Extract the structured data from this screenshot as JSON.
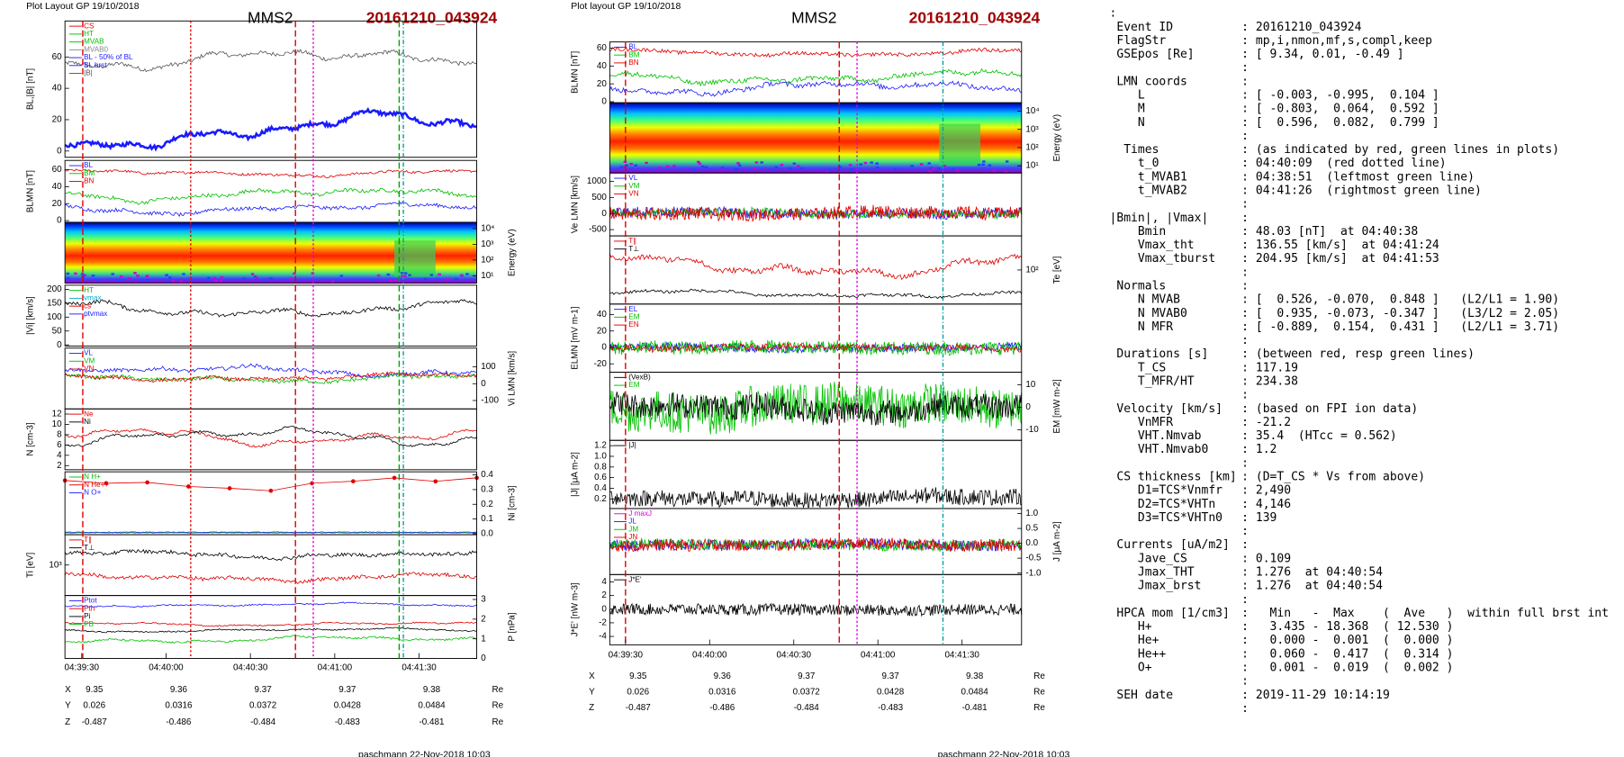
{
  "figures": [
    {
      "header": "Plot Layout GP 19/10/2018",
      "spacecraft": "MMS2",
      "event": "20161210_043924",
      "panels": [
        {
          "ylabel": "BL,|B| [nT]",
          "ylim": [
            -4,
            83
          ],
          "yticks": [
            0,
            20,
            40,
            60
          ],
          "legend": [
            {
              "name": "CS",
              "color": "#e00000"
            },
            {
              "name": "HT",
              "color": "#00c000"
            },
            {
              "name": "MVAB",
              "color": "#00c000"
            },
            {
              "name": "MVAB0",
              "color": "#888888"
            },
            {
              "name": "BL - 50% of BL",
              "color": "#2020ff"
            },
            {
              "name": "BL brst",
              "color": "#2020ff"
            },
            {
              "name": "|B|",
              "color": "#555555"
            }
          ]
        },
        {
          "ylabel": "BLMN [nT]",
          "ylim": [
            -2,
            71
          ],
          "yticks": [
            0,
            20,
            40,
            60
          ],
          "legend": [
            {
              "name": "BL",
              "color": "#2020ff"
            },
            {
              "name": "BM",
              "color": "#00c000"
            },
            {
              "name": "BN",
              "color": "#e00000"
            }
          ]
        },
        {
          "type": "spectrogram",
          "y2label": "Energy (eV)",
          "log": true,
          "y2lim": [
            3.4,
            25000
          ],
          "y2ticks": [
            {
              "value": 10,
              "label": "10¹"
            },
            {
              "value": 100,
              "label": "10²"
            },
            {
              "value": 1000,
              "label": "10³"
            },
            {
              "value": 10000,
              "label": "10⁴"
            }
          ]
        },
        {
          "ylabel": "|Vi| [km/s]",
          "ylim": [
            -4,
            215
          ],
          "yticks": [
            0,
            50,
            100,
            150,
            200
          ],
          "legend": [
            {
              "name": "HT",
              "color": "#00c000"
            },
            {
              "name": "vmax",
              "color": "#00b0d0"
            },
            {
              "name": "cs",
              "color": "#e00000"
            },
            {
              "name": "ptvmax",
              "color": "#2020ff"
            }
          ]
        },
        {
          "y2label": "Vi LMN [km/s]",
          "y2lim": [
            -150,
            212
          ],
          "y2ticks": [
            -100,
            0,
            100
          ],
          "legend": [
            {
              "name": "VL",
              "color": "#2020ff"
            },
            {
              "name": "VM",
              "color": "#00c000"
            },
            {
              "name": "VN",
              "color": "#e00000"
            }
          ]
        },
        {
          "ylabel": "N [cm-3]",
          "ylim": [
            1.2,
            13
          ],
          "yticks": [
            2,
            4,
            6,
            8,
            10,
            12
          ],
          "legend": [
            {
              "name": "Ne",
              "color": "#e00000"
            },
            {
              "name": "Ni",
              "color": "#000000"
            }
          ]
        },
        {
          "y2label": "Ni [cm-3]",
          "y2lim": [
            -0.007,
            0.421
          ],
          "y2ticks": [
            {
              "value": 0,
              "label": "0.0"
            },
            0.1,
            0.2,
            0.3,
            0.4
          ],
          "legend": [
            {
              "name": "N H+",
              "color": "#00c000"
            },
            {
              "name": "N He++",
              "color": "#e00000"
            },
            {
              "name": "N O+",
              "color": "#2020ff"
            }
          ]
        },
        {
          "ylabel": "Ti [eV]",
          "log": true,
          "ylim": [
            300,
            3300
          ],
          "yticks": [
            {
              "value": 1000,
              "label": "10³"
            }
          ],
          "legend": [
            {
              "name": "T∥",
              "color": "#e00000"
            },
            {
              "name": "T⊥",
              "color": "#000000"
            }
          ]
        },
        {
          "y2label": "P [nPa]",
          "y2lim": [
            0,
            3.2
          ],
          "y2ticks": [
            0,
            1,
            2,
            3
          ],
          "legend": [
            {
              "name": "Ptot",
              "color": "#2020ff"
            },
            {
              "name": "Pth",
              "color": "#e00000"
            },
            {
              "name": "Pi",
              "color": "#000000"
            },
            {
              "name": "PB",
              "color": "#00c000"
            }
          ]
        }
      ],
      "time_ticks": [
        "04:39:30",
        "04:40:00",
        "04:40:30",
        "04:41:00",
        "04:41:30"
      ],
      "coords": [
        {
          "label": "X",
          "values": [
            9.35,
            9.36,
            9.37,
            9.37,
            9.38
          ],
          "unit": "Re"
        },
        {
          "label": "Y",
          "values": [
            0.026,
            0.0316,
            0.0372,
            0.0428,
            0.0484
          ],
          "unit": "Re"
        },
        {
          "label": "Z",
          "values": [
            -0.487,
            -0.486,
            -0.484,
            -0.483,
            -0.481
          ],
          "unit": "Re"
        }
      ],
      "footer": "paschmann 22-Nov-2018 10:03"
    },
    {
      "header": "Plot layout GP 19/10/2018",
      "spacecraft": "MMS2",
      "event": "20161210_043924",
      "panels": [
        {
          "ylabel": "BLMN [nT]",
          "ylim": [
            -1.2,
            67
          ],
          "yticks": [
            0,
            20,
            40,
            60
          ],
          "legend": [
            {
              "name": "BL",
              "color": "#2020ff"
            },
            {
              "name": "BM",
              "color": "#00c000"
            },
            {
              "name": "BN",
              "color": "#e00000"
            }
          ]
        },
        {
          "type": "spectrogram",
          "y2label": "Energy (eV)",
          "log": true,
          "y2lim": [
            4,
            29000
          ],
          "y2ticks": [
            {
              "value": 10,
              "label": "10¹"
            },
            {
              "value": 100,
              "label": "10²"
            },
            {
              "value": 1000,
              "label": "10³"
            },
            {
              "value": 10000,
              "label": "10⁴"
            }
          ]
        },
        {
          "ylabel": "Ve LMN [km/s]",
          "ylim": [
            -696,
            1261
          ],
          "yticks": [
            -500,
            0,
            500,
            1000
          ],
          "legend": [
            {
              "name": "VL",
              "color": "#2020ff"
            },
            {
              "name": "VM",
              "color": "#00c000"
            },
            {
              "name": "VN",
              "color": "#e00000"
            }
          ]
        },
        {
          "y2label": "Te [eV]",
          "log": true,
          "y2lim": [
            20,
            500
          ],
          "y2ticks": [
            {
              "value": 100,
              "label": "10²"
            }
          ],
          "legend": [
            {
              "name": "T∥",
              "color": "#e00000"
            },
            {
              "name": "T⊥",
              "color": "#000000"
            }
          ]
        },
        {
          "ylabel": "ELMN [mV m-1]",
          "ylim": [
            -30.2,
            52.8
          ],
          "yticks": [
            -20,
            0,
            20,
            40
          ],
          "legend": [
            {
              "name": "EL",
              "color": "#2020ff"
            },
            {
              "name": "EM",
              "color": "#00c000"
            },
            {
              "name": "EN",
              "color": "#e00000"
            }
          ]
        },
        {
          "y2label": "EM [mW m-2]",
          "y2lim": [
            -14.7,
            15.6
          ],
          "y2ticks": [
            -10,
            0,
            10
          ],
          "legend": [
            {
              "name": "(VexB)",
              "color": "#000000"
            },
            {
              "name": "EM",
              "color": "#00c000"
            }
          ]
        },
        {
          "ylabel": "|J| [μA m-2]",
          "ylim": [
            0.02,
            1.3
          ],
          "yticks": [
            0.2,
            0.4,
            0.6,
            0.8,
            {
              "value": 1,
              "label": "1.0"
            },
            1.2
          ],
          "legend": [
            {
              "name": "|J|",
              "color": "#000000"
            }
          ]
        },
        {
          "y2label": "J [μA m-2]",
          "y2lim": [
            -1.05,
            1.17
          ],
          "y2ticks": [
            {
              "value": -1,
              "label": "-1.0"
            },
            -0.5,
            {
              "value": 0,
              "label": "0.0"
            },
            0.5,
            {
              "value": 1,
              "label": "1.0"
            }
          ],
          "legend": [
            {
              "name": "J maxJ",
              "color": "#e000e0"
            },
            {
              "name": "JL",
              "color": "#2020ff"
            },
            {
              "name": "JM",
              "color": "#00c000"
            },
            {
              "name": "JN",
              "color": "#e00000"
            }
          ]
        },
        {
          "ylabel": "J*E' [nW m-3]",
          "ylim": [
            -5.23,
            5.08
          ],
          "yticks": [
            -4,
            -2,
            0,
            2,
            4
          ],
          "legend": [
            {
              "name": "J*E'",
              "color": "#000000"
            }
          ]
        }
      ],
      "time_ticks": [
        "04:39:30",
        "04:40:00",
        "04:40:30",
        "04:41:00",
        "04:41:30"
      ],
      "coords": [
        {
          "label": "X",
          "values": [
            9.35,
            9.36,
            9.37,
            9.37,
            9.38
          ],
          "unit": "Re"
        },
        {
          "label": "Y",
          "values": [
            0.026,
            0.0316,
            0.0372,
            0.0428,
            0.0484
          ],
          "unit": "Re"
        },
        {
          "label": "Z",
          "values": [
            -0.487,
            -0.486,
            -0.484,
            -0.483,
            -0.481
          ],
          "unit": "Re"
        }
      ],
      "footer": "paschmann 22-Nov-2018 10:03"
    }
  ],
  "summary": {
    "rows": [
      {
        "key": ":"
      },
      {
        "key": " Event ID",
        "value": ": 20161210_043924"
      },
      {
        "key": " FlagStr",
        "value": ": mp,i,nmon,mf,s,compl,keep"
      },
      {
        "key": " GSEpos [Re]",
        "value": ": [ 9.34, 0.01, -0.49 ]"
      },
      {
        "value": ":"
      },
      {
        "key": " LMN coords",
        "value": ":"
      },
      {
        "key": "    L",
        "value": ": [ -0.003, -0.995,  0.104 ]"
      },
      {
        "key": "    M",
        "value": ": [ -0.803,  0.064,  0.592 ]"
      },
      {
        "key": "    N",
        "value": ": [  0.596,  0.082,  0.799 ]"
      },
      {
        "value": ":"
      },
      {
        "key": "  Times",
        "value": ": (as indicated by red, green lines in plots)"
      },
      {
        "key": "    t_0",
        "value": ": 04:40:09  (red dotted line)"
      },
      {
        "key": "    t_MVAB1",
        "value": ": 04:38:51  (leftmost green line)"
      },
      {
        "key": "    t_MVAB2",
        "value": ": 04:41:26  (rightmost green line)"
      },
      {
        "value": ":"
      },
      {
        "key": "|Bmin|, |Vmax|",
        "value": ":"
      },
      {
        "key": "    Bmin",
        "value": ": 48.03 [nT]  at 04:40:38"
      },
      {
        "key": "    Vmax_tht",
        "value": ": 136.55 [km/s]  at 04:41:24"
      },
      {
        "key": "    Vmax_tburst",
        "value": ": 204.95 [km/s]  at 04:41:53"
      },
      {
        "value": ":"
      },
      {
        "key": " Normals",
        "value": ":"
      },
      {
        "key": "    N MVAB",
        "value": ": [  0.526, -0.070,  0.848 ]   (L2/L1 = 1.90)"
      },
      {
        "key": "    N MVAB0",
        "value": ": [  0.935, -0.073, -0.347 ]   (L3/L2 = 2.05)"
      },
      {
        "key": "    N MFR",
        "value": ": [ -0.889,  0.154,  0.431 ]   (L2/L1 = 3.71)"
      },
      {
        "value": ":"
      },
      {
        "key": " Durations [s]",
        "value": ": (between red, resp green lines)"
      },
      {
        "key": "    T_CS",
        "value": ": 117.19"
      },
      {
        "key": "    T_MFR/HT",
        "value": ": 234.38"
      },
      {
        "value": ":"
      },
      {
        "key": " Velocity [km/s]",
        "value": ": (based on FPI ion data)"
      },
      {
        "key": "    VnMFR",
        "value": ": -21.2"
      },
      {
        "key": "    VHT.Nmvab",
        "value": ": 35.4  (HTcc = 0.562)"
      },
      {
        "key": "    VHT.Nmvab0",
        "value": ": 1.2"
      },
      {
        "value": ":"
      },
      {
        "key": " CS thickness [km]",
        "value": ": (D=T_CS * Vs from above)"
      },
      {
        "key": "    D1=TCS*Vnmfr",
        "value": ": 2,490"
      },
      {
        "key": "    D2=TCS*VHTn",
        "value": ": 4,146"
      },
      {
        "key": "    D3=TCS*VHTn0",
        "value": ": 139"
      },
      {
        "value": ":"
      },
      {
        "key": " Currents [uA/m2]",
        "value": ":"
      },
      {
        "key": "    Jave_CS",
        "value": ": 0.109"
      },
      {
        "key": "    Jmax_THT",
        "value": ": 1.276  at 04:40:54"
      },
      {
        "key": "    Jmax_brst",
        "value": ": 1.276  at 04:40:54"
      },
      {
        "value": ":"
      },
      {
        "key": " HPCA mom [1/cm3]",
        "value": ":   Min   -  Max    (  Ave   )  within full brst int"
      },
      {
        "key": "    H+",
        "value": ":   3.435 - 18.368  ( 12.530 )"
      },
      {
        "key": "    He+",
        "value": ":   0.000 -  0.001  (  0.000 )"
      },
      {
        "key": "    He++",
        "value": ":   0.060 -  0.417  (  0.314 )"
      },
      {
        "key": "    O+",
        "value": ":   0.001 -  0.019  (  0.002 )"
      },
      {
        "value": ":"
      },
      {
        "key": " SEH date",
        "value": ": 2019-11-29 10:14:19"
      },
      {
        "value": ":"
      }
    ]
  }
}
